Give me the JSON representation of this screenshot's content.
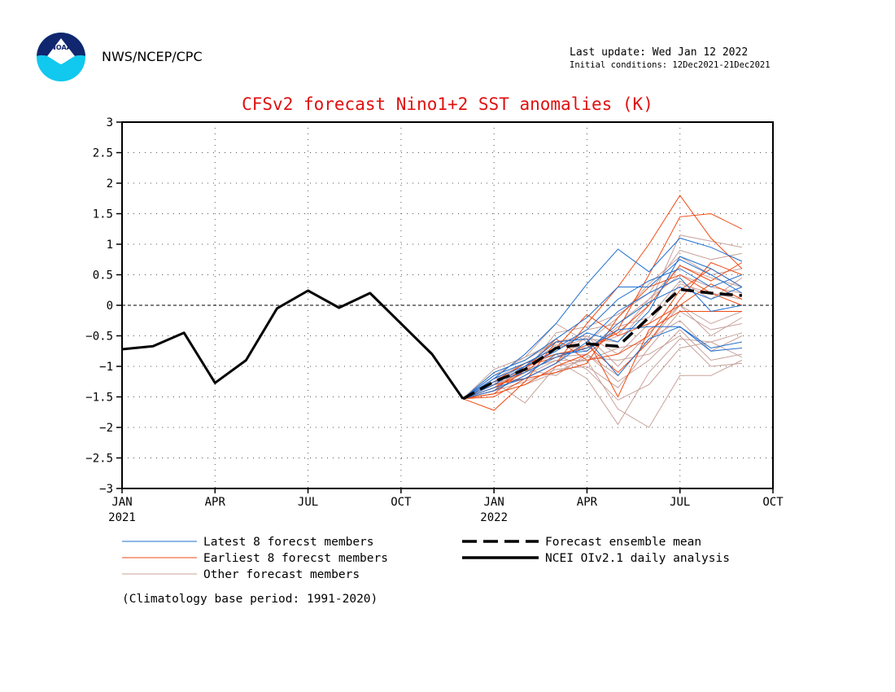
{
  "header": {
    "agency": "NWS/NCEP/CPC",
    "last_update": "Last update: Wed Jan 12 2022",
    "initial_conditions": "Initial conditions: 12Dec2021-21Dec2021",
    "logo_text": "NOAA"
  },
  "colors": {
    "title": "#e01010",
    "latest_members": "#1f6fd0",
    "earliest_members": "#f04a14",
    "other_members": "#c8a29b",
    "ensemble_mean": "#000000",
    "analysis": "#000000"
  },
  "chart_data": {
    "type": "line",
    "title": "CFSv2 forecast Nino1+2 SST anomalies (K)",
    "xlabel": "",
    "ylabel": "",
    "xlim": [
      "2021-01",
      "2022-10"
    ],
    "ylim": [
      -3,
      3
    ],
    "y_ticks": [
      -3,
      -2.5,
      -2,
      -1.5,
      -1,
      -0.5,
      0,
      0.5,
      1,
      1.5,
      2,
      2.5,
      3
    ],
    "x_ticks": [
      {
        "month": "2021-01",
        "label": "JAN",
        "year": "2021"
      },
      {
        "month": "2021-04",
        "label": "APR",
        "year": ""
      },
      {
        "month": "2021-07",
        "label": "JUL",
        "year": ""
      },
      {
        "month": "2021-10",
        "label": "OCT",
        "year": ""
      },
      {
        "month": "2022-01",
        "label": "JAN",
        "year": "2022"
      },
      {
        "month": "2022-04",
        "label": "APR",
        "year": ""
      },
      {
        "month": "2022-07",
        "label": "JUL",
        "year": ""
      },
      {
        "month": "2022-10",
        "label": "OCT",
        "year": ""
      }
    ],
    "grid": true,
    "zero_line": true,
    "analysis": {
      "name": "NCEI OIv2.1 daily analysis",
      "x": [
        "2021-01",
        "2021-02",
        "2021-03",
        "2021-04",
        "2021-05",
        "2021-06",
        "2021-07",
        "2021-08",
        "2021-09",
        "2021-10",
        "2021-11",
        "2021-12"
      ],
      "values": [
        -0.72,
        -0.67,
        -0.45,
        -1.27,
        -0.9,
        -0.05,
        0.24,
        -0.04,
        0.2,
        -0.3,
        -0.8,
        -1.53
      ]
    },
    "ensemble_mean": {
      "name": "Forecast ensemble mean",
      "x": [
        "2021-12",
        "2022-01",
        "2022-02",
        "2022-03",
        "2022-04",
        "2022-05",
        "2022-06",
        "2022-07",
        "2022-08",
        "2022-09"
      ],
      "values": [
        -1.53,
        -1.25,
        -1.05,
        -0.7,
        -0.63,
        -0.67,
        -0.2,
        0.26,
        0.2,
        0.16
      ]
    },
    "members_x": [
      "2021-12",
      "2022-01",
      "2022-02",
      "2022-03",
      "2022-04",
      "2022-05",
      "2022-06",
      "2022-07",
      "2022-08",
      "2022-09"
    ],
    "latest_members": {
      "name": "Latest 8 forecst members",
      "values": [
        [
          -1.53,
          -1.2,
          -0.8,
          -0.3,
          0.35,
          0.92,
          0.55,
          1.1,
          0.95,
          0.72
        ],
        [
          -1.53,
          -1.3,
          -1.0,
          -0.6,
          -0.55,
          -1.15,
          -0.55,
          -0.35,
          -0.7,
          -0.6
        ],
        [
          -1.53,
          -1.1,
          -0.9,
          -0.55,
          -0.2,
          0.3,
          0.3,
          0.75,
          0.5,
          0.2
        ],
        [
          -1.53,
          -1.25,
          -1.1,
          -0.85,
          -0.7,
          -0.4,
          -0.35,
          -0.35,
          -0.75,
          -0.7
        ],
        [
          -1.53,
          -1.35,
          -1.2,
          -0.95,
          -0.6,
          -0.1,
          0.2,
          0.45,
          -0.1,
          0.0
        ],
        [
          -1.53,
          -1.15,
          -0.95,
          -0.7,
          -0.4,
          0.1,
          0.4,
          0.6,
          0.3,
          0.5
        ],
        [
          -1.53,
          -1.4,
          -1.15,
          -0.8,
          -0.75,
          -0.3,
          0.05,
          0.3,
          0.1,
          0.3
        ],
        [
          -1.53,
          -1.2,
          -1.0,
          -0.75,
          -0.45,
          -0.6,
          -0.1,
          0.8,
          0.6,
          0.3
        ]
      ]
    },
    "earliest_members": {
      "name": "Earliest 8 forecst members",
      "values": [
        [
          -1.53,
          -1.5,
          -1.2,
          -0.95,
          -0.3,
          0.3,
          1.0,
          1.8,
          1.1,
          0.6
        ],
        [
          -1.53,
          -1.45,
          -1.3,
          -1.0,
          -0.8,
          -0.4,
          0.5,
          1.45,
          1.5,
          1.25
        ],
        [
          -1.53,
          -1.72,
          -1.25,
          -0.6,
          -0.55,
          -1.5,
          -0.4,
          -0.1,
          -0.1,
          -0.1
        ],
        [
          -1.53,
          -1.35,
          -1.1,
          -0.7,
          -0.15,
          -0.5,
          -0.3,
          0.0,
          0.35,
          0.1
        ],
        [
          -1.53,
          -1.4,
          -1.0,
          -0.85,
          -0.65,
          -1.1,
          -0.6,
          0.1,
          0.7,
          0.5
        ],
        [
          -1.53,
          -1.3,
          -1.2,
          -1.1,
          -0.95,
          -0.2,
          0.3,
          0.5,
          0.2,
          0.0
        ],
        [
          -1.53,
          -1.45,
          -1.05,
          -0.55,
          -0.9,
          -0.8,
          -0.5,
          0.25,
          0.6,
          0.3
        ],
        [
          -1.53,
          -1.25,
          -0.95,
          -0.8,
          -0.7,
          -0.45,
          0.0,
          0.65,
          0.4,
          0.7
        ]
      ]
    },
    "other_members": {
      "name": "Other forecast members",
      "values": [
        [
          -1.53,
          -1.35,
          -1.05,
          -0.9,
          -1.2,
          -1.95,
          -1.1,
          -0.55,
          -0.6,
          -0.45
        ],
        [
          -1.53,
          -1.25,
          -1.6,
          -1.0,
          -0.9,
          -1.7,
          -2.0,
          -1.15,
          -1.15,
          -0.9
        ],
        [
          -1.53,
          -1.1,
          -0.9,
          -0.6,
          -0.5,
          -0.8,
          -0.3,
          0.35,
          0.2,
          0.1
        ],
        [
          -1.53,
          -1.3,
          -1.1,
          -0.85,
          -0.8,
          -1.25,
          -0.9,
          -0.4,
          -0.9,
          -0.8
        ],
        [
          -1.53,
          -1.2,
          -0.95,
          -0.7,
          -0.55,
          -0.6,
          0.0,
          1.15,
          1.05,
          0.95
        ],
        [
          -1.53,
          -1.4,
          -1.25,
          -1.05,
          -1.0,
          -1.35,
          -0.7,
          -0.1,
          -0.4,
          -0.3
        ],
        [
          -1.53,
          -1.15,
          -0.85,
          -0.3,
          -0.6,
          -0.2,
          0.35,
          0.8,
          0.5,
          0.6
        ],
        [
          -1.53,
          -1.45,
          -1.3,
          -1.1,
          -0.85,
          -0.9,
          -0.8,
          -0.5,
          -1.0,
          -0.95
        ],
        [
          -1.53,
          -1.3,
          -1.0,
          -0.65,
          -0.7,
          -0.5,
          0.1,
          0.5,
          0.3,
          0.2
        ],
        [
          -1.53,
          -1.25,
          -1.2,
          -0.95,
          -0.5,
          -1.0,
          -0.45,
          0.0,
          -0.3,
          -0.1
        ],
        [
          -1.53,
          -1.35,
          -1.0,
          -0.8,
          -1.05,
          -1.55,
          -1.3,
          -0.7,
          -0.6,
          -0.85
        ],
        [
          -1.53,
          -1.2,
          -1.1,
          -0.45,
          -0.35,
          -0.15,
          0.2,
          0.9,
          0.75,
          0.85
        ],
        [
          -1.53,
          -1.05,
          -0.85,
          -0.6,
          -0.75,
          -0.35,
          -0.2,
          0.4,
          0.1,
          0.45
        ],
        [
          -1.53,
          -1.4,
          -1.15,
          -0.9,
          -0.9,
          -0.7,
          -0.6,
          0.0,
          -0.5,
          -0.2
        ],
        [
          -1.53,
          -1.3,
          -0.95,
          -0.75,
          -0.4,
          -0.3,
          0.1,
          0.65,
          0.45,
          0.3
        ],
        [
          -1.53,
          -1.25,
          -1.05,
          -1.15,
          -0.8,
          -1.15,
          -0.55,
          -0.25,
          -0.75,
          -0.5
        ]
      ]
    },
    "legend": {
      "placement": "bottom",
      "entries": [
        {
          "label": "Latest 8 forecst members",
          "style": "thin",
          "color": "#1f6fd0"
        },
        {
          "label": "Earliest 8 forecst members",
          "style": "thin",
          "color": "#f04a14"
        },
        {
          "label": "Other forecast members",
          "style": "thin",
          "color": "#c8a29b"
        },
        {
          "label": "Forecast ensemble mean",
          "style": "dashed",
          "color": "#000000"
        },
        {
          "label": "NCEI OIv2.1 daily analysis",
          "style": "solid",
          "color": "#000000"
        }
      ]
    },
    "note": "(Climatology base period: 1991-2020)"
  }
}
